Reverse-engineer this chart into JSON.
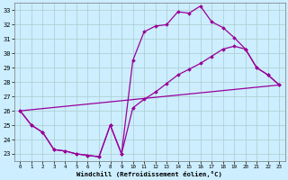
{
  "line1_x": [
    0,
    1,
    2,
    3,
    4,
    5,
    6,
    7,
    8,
    9,
    10,
    11,
    12,
    13,
    14,
    15,
    16,
    17,
    18,
    19,
    20,
    21,
    22,
    23
  ],
  "line1_y": [
    26.0,
    25.0,
    24.5,
    23.3,
    23.2,
    23.0,
    22.9,
    22.8,
    25.0,
    23.0,
    29.5,
    31.5,
    31.9,
    32.0,
    32.9,
    32.8,
    33.3,
    32.2,
    31.8,
    31.1,
    30.3,
    29.0,
    28.5,
    27.8
  ],
  "line2_x": [
    0,
    1,
    2,
    3,
    4,
    5,
    6,
    7,
    8,
    9,
    10,
    11,
    12,
    13,
    14,
    15,
    16,
    17,
    18,
    19,
    20,
    21,
    22,
    23
  ],
  "line2_y": [
    26.0,
    25.0,
    24.5,
    23.3,
    23.2,
    23.0,
    22.9,
    22.8,
    25.0,
    23.0,
    26.2,
    26.8,
    27.3,
    27.9,
    28.5,
    28.9,
    29.3,
    29.8,
    30.3,
    30.5,
    30.3,
    29.0,
    28.5,
    27.8
  ],
  "line3_x": [
    0,
    23
  ],
  "line3_y": [
    26.0,
    27.8
  ],
  "color": "#990099",
  "bg_color": "#cceeff",
  "grid_color": "#aacccc",
  "xlabel": "Windchill (Refroidissement éolien,°C)",
  "ylim": [
    22.5,
    33.5
  ],
  "yticks": [
    23,
    24,
    25,
    26,
    27,
    28,
    29,
    30,
    31,
    32,
    33
  ],
  "xlim": [
    -0.5,
    23.5
  ],
  "xticks": [
    0,
    1,
    2,
    3,
    4,
    5,
    6,
    7,
    8,
    9,
    10,
    11,
    12,
    13,
    14,
    15,
    16,
    17,
    18,
    19,
    20,
    21,
    22,
    23
  ],
  "figwidth": 3.2,
  "figheight": 2.0,
  "dpi": 100
}
